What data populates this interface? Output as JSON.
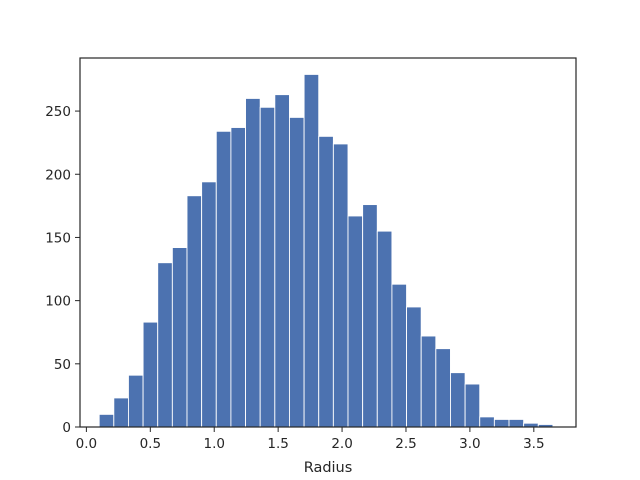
{
  "chart_data": {
    "type": "bar",
    "subtype": "histogram",
    "xlabel": "Radius",
    "ylabel": "",
    "xlim": [
      -0.05,
      3.83
    ],
    "ylim": [
      0,
      292
    ],
    "xticks": [
      0.0,
      0.5,
      1.0,
      1.5,
      2.0,
      2.5,
      3.0,
      3.5
    ],
    "xtick_labels": [
      "0.0",
      "0.5",
      "1.0",
      "1.5",
      "2.0",
      "2.5",
      "3.0",
      "3.5"
    ],
    "yticks": [
      0,
      50,
      100,
      150,
      200,
      250
    ],
    "ytick_labels": [
      "0",
      "50",
      "100",
      "150",
      "200",
      "250"
    ],
    "bin_start": 0.1,
    "bin_width": 0.1145,
    "values": [
      10,
      23,
      41,
      83,
      130,
      142,
      183,
      194,
      234,
      237,
      260,
      253,
      263,
      245,
      279,
      230,
      224,
      167,
      176,
      155,
      113,
      95,
      72,
      62,
      43,
      34,
      8,
      6,
      6,
      3,
      2
    ],
    "bar_color": "#4c72b0",
    "edge_color": "#ffffff",
    "grid": false,
    "legend": "none"
  }
}
